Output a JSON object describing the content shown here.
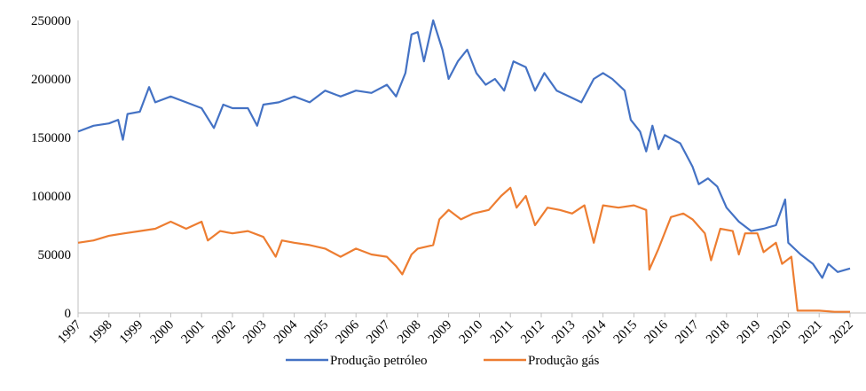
{
  "chart_data": {
    "type": "line",
    "xlim": [
      1997,
      2022
    ],
    "xticks": [
      1997,
      1998,
      1999,
      2000,
      2001,
      2002,
      2003,
      2004,
      2005,
      2006,
      2007,
      2008,
      2009,
      2010,
      2011,
      2012,
      2013,
      2014,
      2015,
      2016,
      2017,
      2018,
      2019,
      2020,
      2021,
      2022
    ],
    "ylim": [
      0,
      250000
    ],
    "yticks": [
      0,
      50000,
      100000,
      150000,
      200000,
      250000
    ],
    "grid": false,
    "legend": "bottom",
    "series": [
      {
        "name": "Produção petróleo",
        "color": "#4472c4",
        "x": [
          1997,
          1997.5,
          1998,
          1998.3,
          1998.45,
          1998.6,
          1999,
          1999.3,
          1999.5,
          2000,
          2000.5,
          2001,
          2001.4,
          2001.7,
          2002,
          2002.5,
          2002.8,
          2003,
          2003.5,
          2004,
          2004.5,
          2005,
          2005.5,
          2006,
          2006.5,
          2007,
          2007.3,
          2007.6,
          2007.8,
          2008,
          2008.2,
          2008.5,
          2008.8,
          2009,
          2009.3,
          2009.6,
          2009.9,
          2010.2,
          2010.5,
          2010.8,
          2011.1,
          2011.5,
          2011.8,
          2012.1,
          2012.5,
          2012.9,
          2013.3,
          2013.7,
          2014,
          2014.3,
          2014.7,
          2014.9,
          2015.2,
          2015.4,
          2015.6,
          2015.8,
          2016,
          2016.5,
          2016.9,
          2017.1,
          2017.4,
          2017.7,
          2018,
          2018.4,
          2018.8,
          2019.2,
          2019.6,
          2019.9,
          2020,
          2020.4,
          2020.8,
          2021.1,
          2021.3,
          2021.6,
          2022
        ],
        "values": [
          155000,
          160000,
          162000,
          165000,
          148000,
          170000,
          172000,
          193000,
          180000,
          185000,
          180000,
          175000,
          158000,
          178000,
          175000,
          175000,
          160000,
          178000,
          180000,
          185000,
          180000,
          190000,
          185000,
          190000,
          188000,
          195000,
          185000,
          205000,
          238000,
          240000,
          215000,
          250000,
          225000,
          200000,
          215000,
          225000,
          205000,
          195000,
          200000,
          190000,
          215000,
          210000,
          190000,
          205000,
          190000,
          185000,
          180000,
          200000,
          205000,
          200000,
          190000,
          165000,
          155000,
          138000,
          160000,
          140000,
          152000,
          145000,
          125000,
          110000,
          115000,
          108000,
          90000,
          78000,
          70000,
          72000,
          75000,
          97000,
          60000,
          50000,
          42000,
          30000,
          42000,
          35000,
          38000
        ]
      },
      {
        "name": "Produção gás",
        "color": "#ed7d31",
        "x": [
          1997,
          1997.5,
          1998,
          1998.5,
          1999,
          1999.5,
          2000,
          2000.5,
          2001,
          2001.2,
          2001.6,
          2002,
          2002.5,
          2003,
          2003.4,
          2003.6,
          2004,
          2004.5,
          2005,
          2005.5,
          2006,
          2006.5,
          2007,
          2007.3,
          2007.5,
          2007.8,
          2008,
          2008.5,
          2008.7,
          2009,
          2009.4,
          2009.8,
          2010.3,
          2010.7,
          2011,
          2011.2,
          2011.5,
          2011.8,
          2012.2,
          2012.6,
          2013,
          2013.4,
          2013.7,
          2014,
          2014.5,
          2015,
          2015.4,
          2015.5,
          2015.8,
          2016.2,
          2016.6,
          2016.9,
          2017.3,
          2017.5,
          2017.8,
          2018.2,
          2018.4,
          2018.6,
          2019,
          2019.2,
          2019.6,
          2019.8,
          2020.1,
          2020.3,
          2021,
          2021.5,
          2022
        ],
        "values": [
          60000,
          62000,
          66000,
          68000,
          70000,
          72000,
          78000,
          72000,
          78000,
          62000,
          70000,
          68000,
          70000,
          65000,
          48000,
          62000,
          60000,
          58000,
          55000,
          48000,
          55000,
          50000,
          48000,
          40000,
          33000,
          50000,
          55000,
          58000,
          80000,
          88000,
          80000,
          85000,
          88000,
          100000,
          107000,
          90000,
          100000,
          75000,
          90000,
          88000,
          85000,
          92000,
          60000,
          92000,
          90000,
          92000,
          88000,
          37000,
          55000,
          82000,
          85000,
          80000,
          68000,
          45000,
          72000,
          70000,
          50000,
          68000,
          68000,
          52000,
          60000,
          42000,
          48000,
          2000,
          2000,
          1000,
          1000
        ]
      }
    ]
  }
}
